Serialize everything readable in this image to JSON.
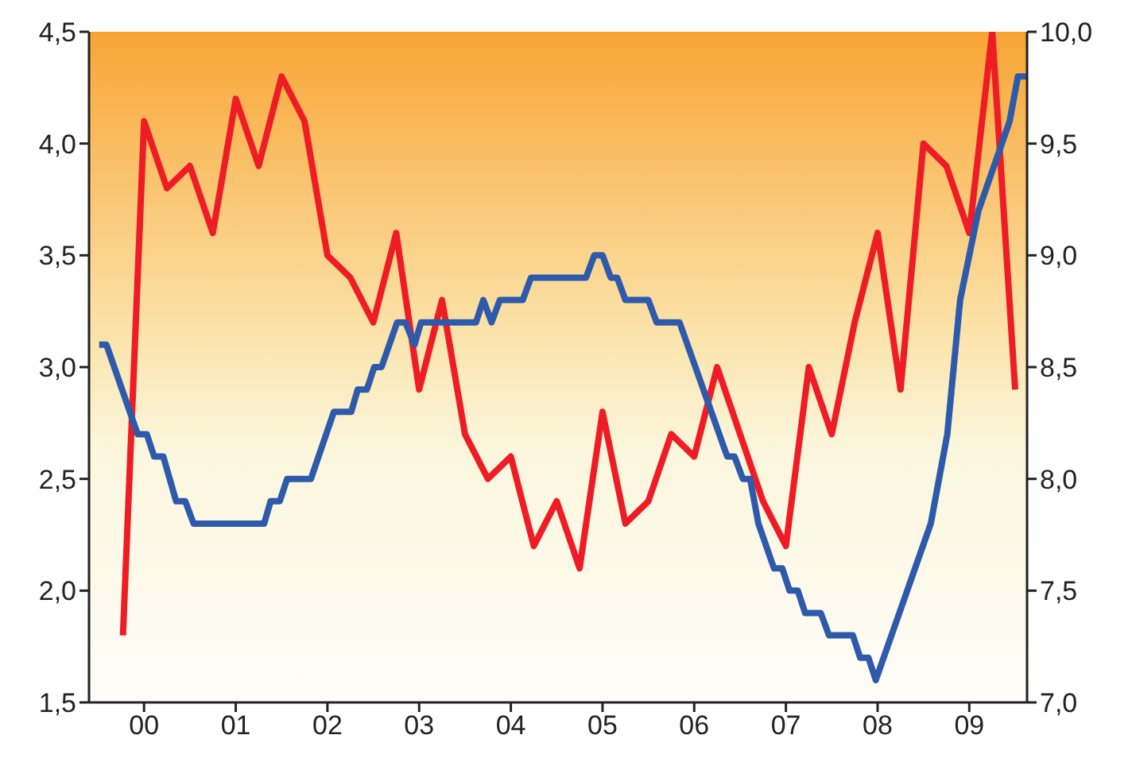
{
  "chart_data": {
    "type": "line",
    "xlim": [
      1999.4,
      2009.63
    ],
    "xticks": [
      {
        "value": 2000,
        "label": "00"
      },
      {
        "value": 2001,
        "label": "01"
      },
      {
        "value": 2002,
        "label": "02"
      },
      {
        "value": 2003,
        "label": "03"
      },
      {
        "value": 2004,
        "label": "04"
      },
      {
        "value": 2005,
        "label": "05"
      },
      {
        "value": 2006,
        "label": "06"
      },
      {
        "value": 2007,
        "label": "07"
      },
      {
        "value": 2008,
        "label": "08"
      },
      {
        "value": 2009,
        "label": "09"
      }
    ],
    "ylim": [
      1.5,
      4.5
    ],
    "yticks": [
      {
        "value": 1.5,
        "label": "1,5"
      },
      {
        "value": 2,
        "label": "2,0"
      },
      {
        "value": 2.5,
        "label": "2,5"
      },
      {
        "value": 3,
        "label": "3,0"
      },
      {
        "value": 3.5,
        "label": "3,5"
      },
      {
        "value": 4,
        "label": "4,0"
      },
      {
        "value": 4.5,
        "label": "4,5"
      }
    ],
    "y2lim": [
      7,
      10
    ],
    "y2ticks": [
      {
        "value": 7,
        "label": "7,0"
      },
      {
        "value": 7.5,
        "label": "7,5"
      },
      {
        "value": 8,
        "label": "8,0"
      },
      {
        "value": 8.5,
        "label": "8,5"
      },
      {
        "value": 9,
        "label": "9,0"
      },
      {
        "value": 9.5,
        "label": "9,5"
      },
      {
        "value": 10,
        "label": "10,0"
      }
    ],
    "grid": false,
    "legend": false,
    "marker": "none",
    "line_style": "solid",
    "series": [
      {
        "color": "#ee1c25",
        "x": [
          1999.77,
          2000,
          2000.25,
          2000.5,
          2000.75,
          2001,
          2001.25,
          2001.5,
          2001.75,
          2002,
          2002.25,
          2002.5,
          2002.75,
          2003,
          2003.25,
          2003.5,
          2003.75,
          2004,
          2004.25,
          2004.5,
          2004.75,
          2005,
          2005.25,
          2005.5,
          2005.75,
          2006,
          2006.25,
          2006.5,
          2006.75,
          2007,
          2007.25,
          2007.5,
          2007.75,
          2008,
          2008.25,
          2008.5,
          2008.75,
          2009,
          2009.25,
          2009.5
        ],
        "values": [
          1.8,
          4.1,
          3.8,
          3.9,
          3.6,
          4.2,
          3.9,
          4.3,
          4.1,
          3.5,
          3.4,
          3.2,
          3.6,
          2.9,
          3.3,
          2.7,
          2.5,
          2.6,
          2.2,
          2.4,
          2.1,
          2.8,
          2.3,
          2.4,
          2.7,
          2.6,
          3.0,
          2.7,
          2.4,
          2.2,
          3.0,
          2.7,
          3.2,
          3.6,
          2.9,
          4.0,
          3.9,
          3.6,
          4.5,
          2.9
        ]
      },
      {
        "color": "#2e5aac",
        "axis": "y2",
        "x": [
          1999.51,
          1999.59,
          1999.93,
          2000.03,
          2000.11,
          2000.21,
          2000.35,
          2000.45,
          2000.54,
          2001.31,
          2001.38,
          2001.48,
          2001.56,
          2001.82,
          2002.07,
          2002.26,
          2002.33,
          2002.43,
          2002.51,
          2002.59,
          2002.76,
          2002.85,
          2002.95,
          2003.02,
          2003.62,
          2003.7,
          2003.79,
          2003.88,
          2004.13,
          2004.22,
          2004.82,
          2004.91,
          2005,
          2005.09,
          2005.16,
          2005.25,
          2005.5,
          2005.59,
          2005.84,
          2006.36,
          2006.44,
          2006.53,
          2006.61,
          2006.7,
          2006.87,
          2006.96,
          2007.04,
          2007.13,
          2007.21,
          2007.38,
          2007.47,
          2007.73,
          2007.81,
          2007.9,
          2007.98,
          2008.58,
          2008.76,
          2008.9,
          2009.1,
          2009.44,
          2009.53,
          2009.62
        ],
        "values": [
          8.6,
          8.6,
          8.2,
          8.2,
          8.1,
          8.1,
          7.9,
          7.9,
          7.8,
          7.8,
          7.9,
          7.9,
          8.0,
          8.0,
          8.3,
          8.3,
          8.4,
          8.4,
          8.5,
          8.5,
          8.7,
          8.7,
          8.6,
          8.7,
          8.7,
          8.8,
          8.7,
          8.8,
          8.8,
          8.9,
          8.9,
          9.0,
          9.0,
          8.9,
          8.9,
          8.8,
          8.8,
          8.7,
          8.7,
          8.1,
          8.1,
          8.0,
          8.0,
          7.8,
          7.6,
          7.6,
          7.5,
          7.5,
          7.4,
          7.4,
          7.3,
          7.3,
          7.2,
          7.2,
          7.1,
          7.8,
          8.2,
          8.8,
          9.2,
          9.6,
          9.8,
          9.8
        ]
      }
    ]
  }
}
